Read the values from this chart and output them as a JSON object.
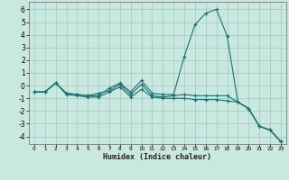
{
  "xlabel": "Humidex (Indice chaleur)",
  "bg_color": "#c8e8e0",
  "grid_color": "#a0c8c0",
  "line_color": "#1a7070",
  "xlim": [
    -0.5,
    23.5
  ],
  "ylim": [
    -4.6,
    6.6
  ],
  "yticks": [
    -4,
    -3,
    -2,
    -1,
    0,
    1,
    2,
    3,
    4,
    5,
    6
  ],
  "xticks": [
    0,
    1,
    2,
    3,
    4,
    5,
    6,
    7,
    8,
    9,
    10,
    11,
    12,
    13,
    14,
    15,
    16,
    17,
    18,
    19,
    20,
    21,
    22,
    23
  ],
  "series": [
    [
      -0.5,
      -0.5,
      0.2,
      -0.6,
      -0.7,
      -0.8,
      -0.8,
      -0.2,
      0.2,
      -0.5,
      0.4,
      -0.6,
      -0.7,
      -0.7,
      2.3,
      4.8,
      5.7,
      6.0,
      3.9,
      -1.3,
      -1.8,
      -3.2,
      -3.5,
      -4.4
    ],
    [
      -0.5,
      -0.5,
      0.2,
      -0.6,
      -0.7,
      -0.8,
      -0.6,
      -0.4,
      0.1,
      -0.7,
      0.1,
      -0.8,
      -0.9,
      -0.8,
      -0.7,
      -0.8,
      -0.8,
      -0.8,
      -0.8,
      -1.3,
      -1.8,
      -3.2,
      -3.5,
      -4.4
    ],
    [
      -0.5,
      -0.5,
      0.2,
      -0.7,
      -0.8,
      -0.9,
      -0.9,
      -0.5,
      -0.1,
      -0.9,
      -0.3,
      -0.9,
      -1.0,
      -1.0,
      -1.0,
      -1.1,
      -1.1,
      -1.1,
      -1.2,
      -1.3,
      -1.8,
      -3.2,
      -3.5,
      -4.4
    ]
  ],
  "marker": "+"
}
